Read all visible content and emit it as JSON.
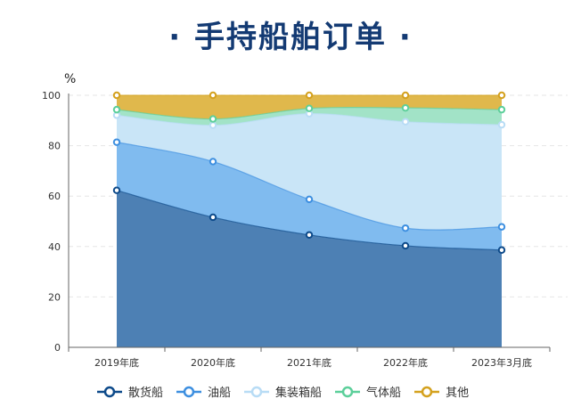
{
  "chart_data": {
    "type": "area",
    "stacked": true,
    "title": "· 手持船舶订单 ·",
    "ylabel": "%",
    "xlabel": "",
    "ylim": [
      0,
      100
    ],
    "yticks": [
      "0",
      "20",
      "40",
      "60",
      "80",
      "100"
    ],
    "categories": [
      "2019年底",
      "2020年底",
      "2021年底",
      "2022年底",
      "2023年3月底"
    ],
    "grid": true,
    "legend_position": "bottom",
    "series": [
      {
        "name": "散货船",
        "values": [
          62.3,
          51.6,
          44.6,
          40.3,
          38.6
        ],
        "line_color": "#0d4a8a",
        "fill_color": "#4d80b4"
      },
      {
        "name": "油船",
        "values": [
          19.1,
          22.1,
          14.1,
          7.0,
          9.2
        ],
        "line_color": "#3d8fe0",
        "fill_color": "#80bbef"
      },
      {
        "name": "集装箱船",
        "values": [
          10.7,
          14.4,
          34.0,
          42.2,
          40.5
        ],
        "line_color": "#b8dcf5",
        "fill_color": "#c9e5f7"
      },
      {
        "name": "气体船",
        "values": [
          2.2,
          2.5,
          2.1,
          5.5,
          6.0
        ],
        "line_color": "#5ccf9a",
        "fill_color": "#a2e3c7"
      },
      {
        "name": "其他",
        "values": [
          5.7,
          9.4,
          5.2,
          5.0,
          5.7
        ],
        "line_color": "#d4a11e",
        "fill_color": "#e0b84c"
      }
    ]
  }
}
